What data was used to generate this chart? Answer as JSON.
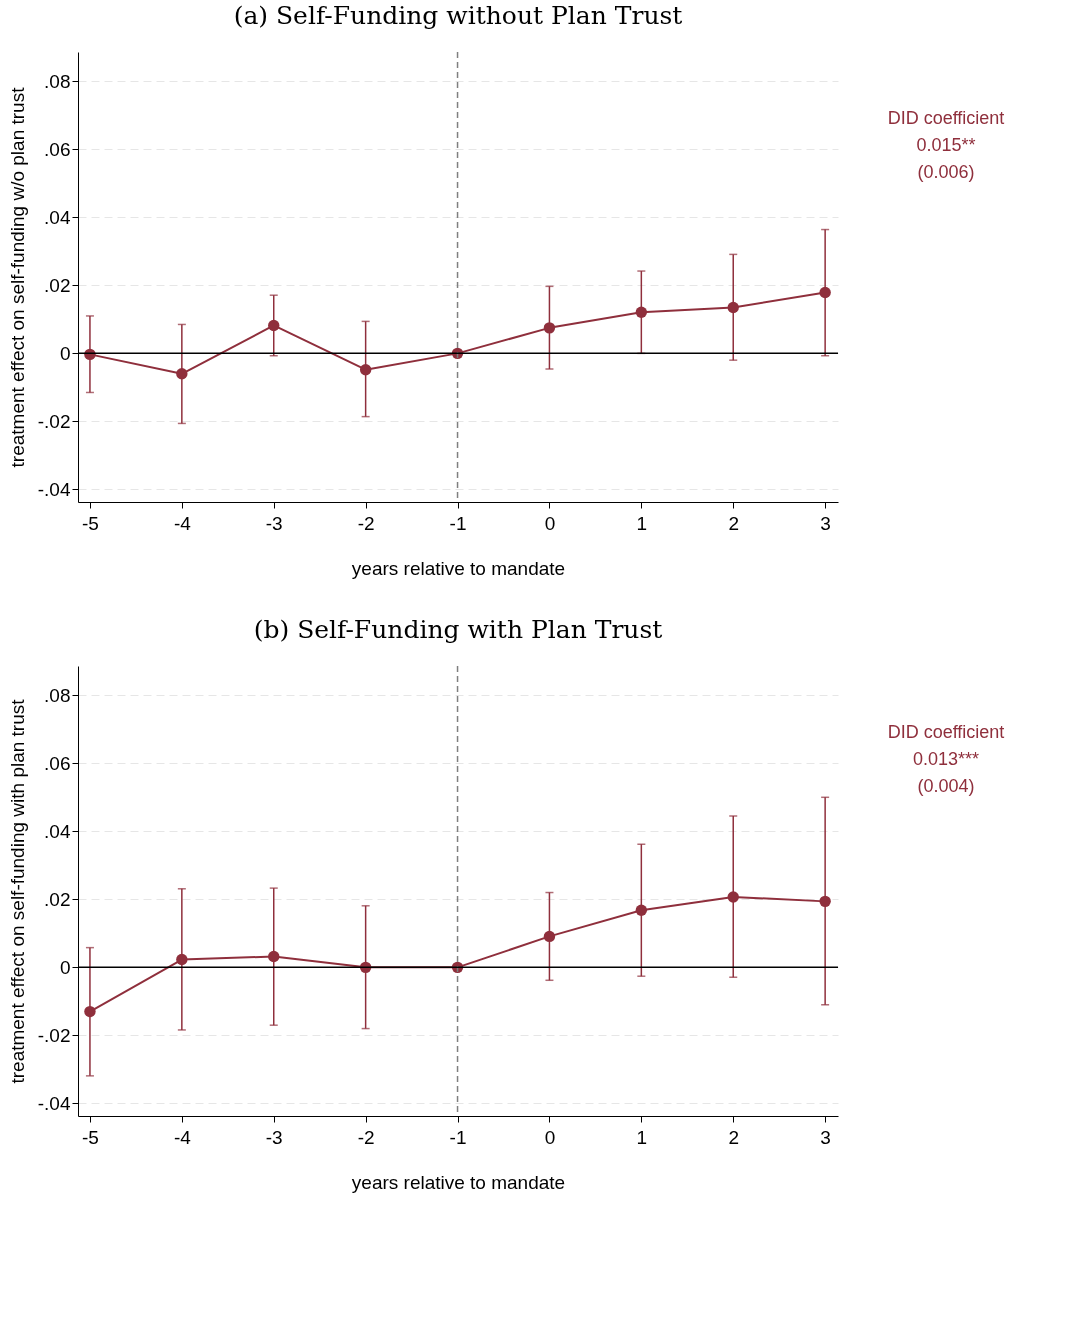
{
  "chart_data": [
    {
      "type": "line",
      "title": "(a) Self-Funding without Plan Trust",
      "xlabel": "years relative to mandate",
      "ylabel": "treatment effect on self-funding w/o plan trust",
      "x": [
        -5,
        -4,
        -3,
        -2,
        -1,
        0,
        1,
        2,
        3
      ],
      "series": [
        {
          "color": "#8f2f3c",
          "values": [
            -0.0003,
            -0.006,
            0.0082,
            -0.0048,
            0,
            0.0075,
            0.0121,
            0.0135,
            0.0179
          ],
          "errors": [
            [
              -0.0115,
              0.011
            ],
            [
              -0.0206,
              0.0085
            ],
            [
              -0.0007,
              0.0171
            ],
            [
              -0.0186,
              0.0094
            ],
            null,
            [
              -0.0046,
              0.0197
            ],
            [
              0,
              0.0242
            ],
            [
              -0.002,
              0.0291
            ],
            [
              -0.0007,
              0.0364
            ]
          ]
        }
      ],
      "xlim": [
        -5.13,
        3.14
      ],
      "xticks": [
        -5,
        -4,
        -3,
        -2,
        -1,
        0,
        1,
        2,
        3
      ],
      "ylim": [
        -0.0437,
        0.0886
      ],
      "yticks": [
        {
          "value": -0.04,
          "label": "-.04"
        },
        {
          "value": -0.02,
          "label": "-.02"
        },
        {
          "value": 0,
          "label": "0"
        },
        {
          "value": 0.02,
          "label": ".02"
        },
        {
          "value": 0.04,
          "label": ".04"
        },
        {
          "value": 0.06,
          "label": ".06"
        },
        {
          "value": 0.08,
          "label": ".08"
        }
      ],
      "grid": "y",
      "marker": "circle",
      "line_style": "solid",
      "ref_lines": [
        {
          "axis": "x",
          "value": -1,
          "color": "#7f7f7f",
          "line_style": "dashed"
        },
        {
          "axis": "y",
          "value": 0,
          "color": "#000000",
          "line_style": "solid"
        }
      ],
      "annotations": [
        "DID coefficient",
        "0.015**",
        "(0.006)"
      ]
    },
    {
      "type": "line",
      "title": "(b) Self-Funding with Plan Trust",
      "xlabel": "years relative to mandate",
      "ylabel": "treatment effect on self-funding with plan trust",
      "x": [
        -5,
        -4,
        -3,
        -2,
        -1,
        0,
        1,
        2,
        3
      ],
      "series": [
        {
          "color": "#8f2f3c",
          "values": [
            -0.013,
            0.0023,
            0.0032,
            0,
            0,
            0.0091,
            0.0168,
            0.0207,
            0.0194
          ],
          "errors": [
            [
              -0.0319,
              0.0058
            ],
            [
              -0.0184,
              0.0231
            ],
            [
              -0.017,
              0.0233
            ],
            [
              -0.018,
              0.0181
            ],
            null,
            [
              -0.0038,
              0.022
            ],
            [
              -0.0026,
              0.0362
            ],
            [
              -0.0029,
              0.0445
            ],
            [
              -0.011,
              0.05
            ]
          ]
        }
      ],
      "xlim": [
        -5.13,
        3.14
      ],
      "xticks": [
        -5,
        -4,
        -3,
        -2,
        -1,
        0,
        1,
        2,
        3
      ],
      "ylim": [
        -0.0437,
        0.0886
      ],
      "yticks": [
        {
          "value": -0.04,
          "label": "-.04"
        },
        {
          "value": -0.02,
          "label": "-.02"
        },
        {
          "value": 0,
          "label": "0"
        },
        {
          "value": 0.02,
          "label": ".02"
        },
        {
          "value": 0.04,
          "label": ".04"
        },
        {
          "value": 0.06,
          "label": ".06"
        },
        {
          "value": 0.08,
          "label": ".08"
        }
      ],
      "grid": "y",
      "marker": "circle",
      "line_style": "solid",
      "ref_lines": [
        {
          "axis": "x",
          "value": -1,
          "color": "#7f7f7f",
          "line_style": "dashed"
        },
        {
          "axis": "y",
          "value": 0,
          "color": "#000000",
          "line_style": "solid"
        }
      ],
      "annotations": [
        "DID coefficient",
        "0.013***",
        "(0.004)"
      ]
    }
  ]
}
